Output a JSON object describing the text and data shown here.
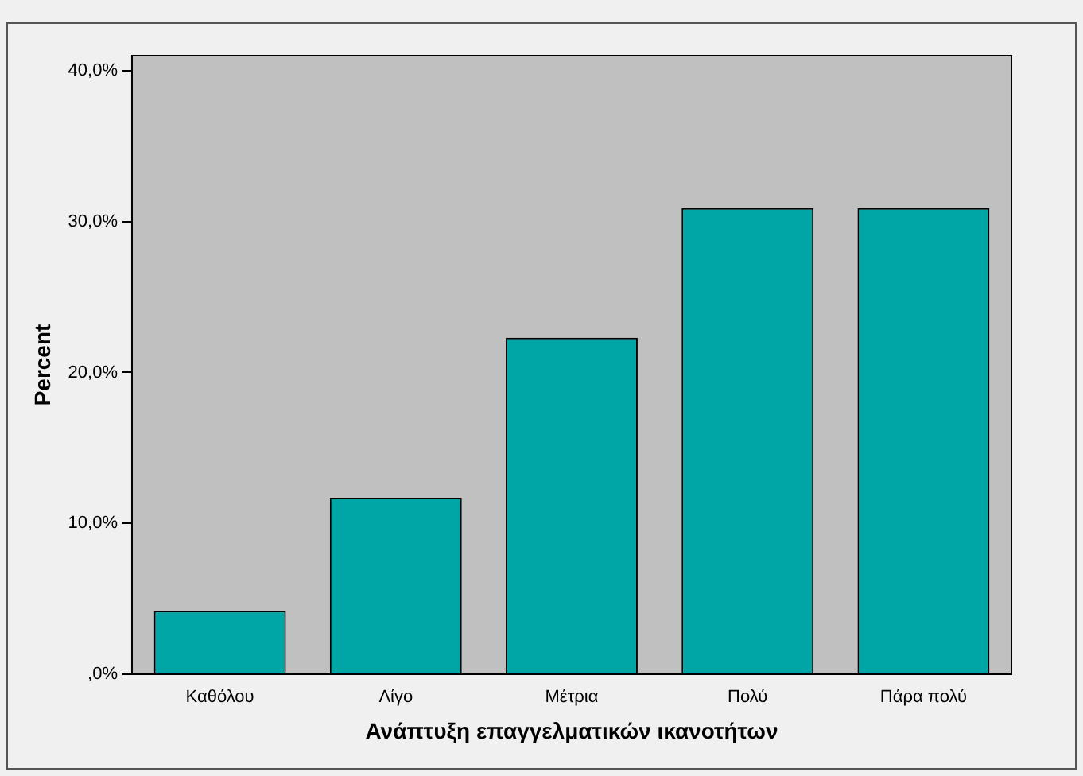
{
  "chart_data": {
    "type": "bar",
    "xlabel": "Ανάπτυξη επαγγελματικών ικανοτήτων",
    "ylabel": "Percent",
    "categories": [
      "Καθόλου",
      "Λίγο",
      "Μέτρια",
      "Πολύ",
      "Πάρα πολύ"
    ],
    "values": [
      4.2,
      11.7,
      22.3,
      30.9,
      30.9
    ],
    "color": "#00a6a6",
    "ylim": [
      0,
      41
    ],
    "yticks": [
      {
        "value": 0,
        "label": ",0%"
      },
      {
        "value": 10,
        "label": "10,0%"
      },
      {
        "value": 20,
        "label": "20,0%"
      },
      {
        "value": 30,
        "label": "30,0%"
      },
      {
        "value": 40,
        "label": "40,0%"
      }
    ],
    "grid": false,
    "legend": false
  }
}
